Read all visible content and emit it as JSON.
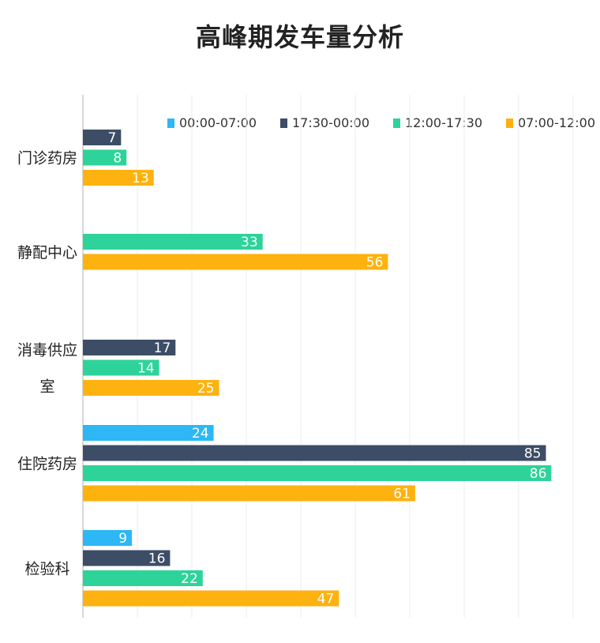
{
  "chart_data": {
    "type": "bar",
    "orientation": "horizontal",
    "title": "高峰期发车量分析",
    "categories": [
      "门诊药房",
      "静配中心",
      "消毒供应室",
      "住院药房",
      "检验科"
    ],
    "category_label_lines": [
      [
        "门诊药房"
      ],
      [
        "静配中心"
      ],
      [
        "消毒供应",
        "室"
      ],
      [
        "住院药房"
      ],
      [
        "检验科"
      ]
    ],
    "series": [
      {
        "name": "00:00-07:00",
        "color": "#2db7f5",
        "values": [
          null,
          null,
          null,
          24,
          9
        ]
      },
      {
        "name": "17:30-00:00",
        "color": "#3d4d66",
        "values": [
          7,
          null,
          17,
          85,
          16
        ]
      },
      {
        "name": "12:00-17:30",
        "color": "#2ed39a",
        "values": [
          8,
          33,
          14,
          86,
          22
        ]
      },
      {
        "name": "07:00-12:00",
        "color": "#fdb20f",
        "values": [
          13,
          56,
          25,
          61,
          47
        ]
      }
    ],
    "xlim": [
      0,
      90
    ],
    "grid": true,
    "legend_position": "top-right"
  }
}
